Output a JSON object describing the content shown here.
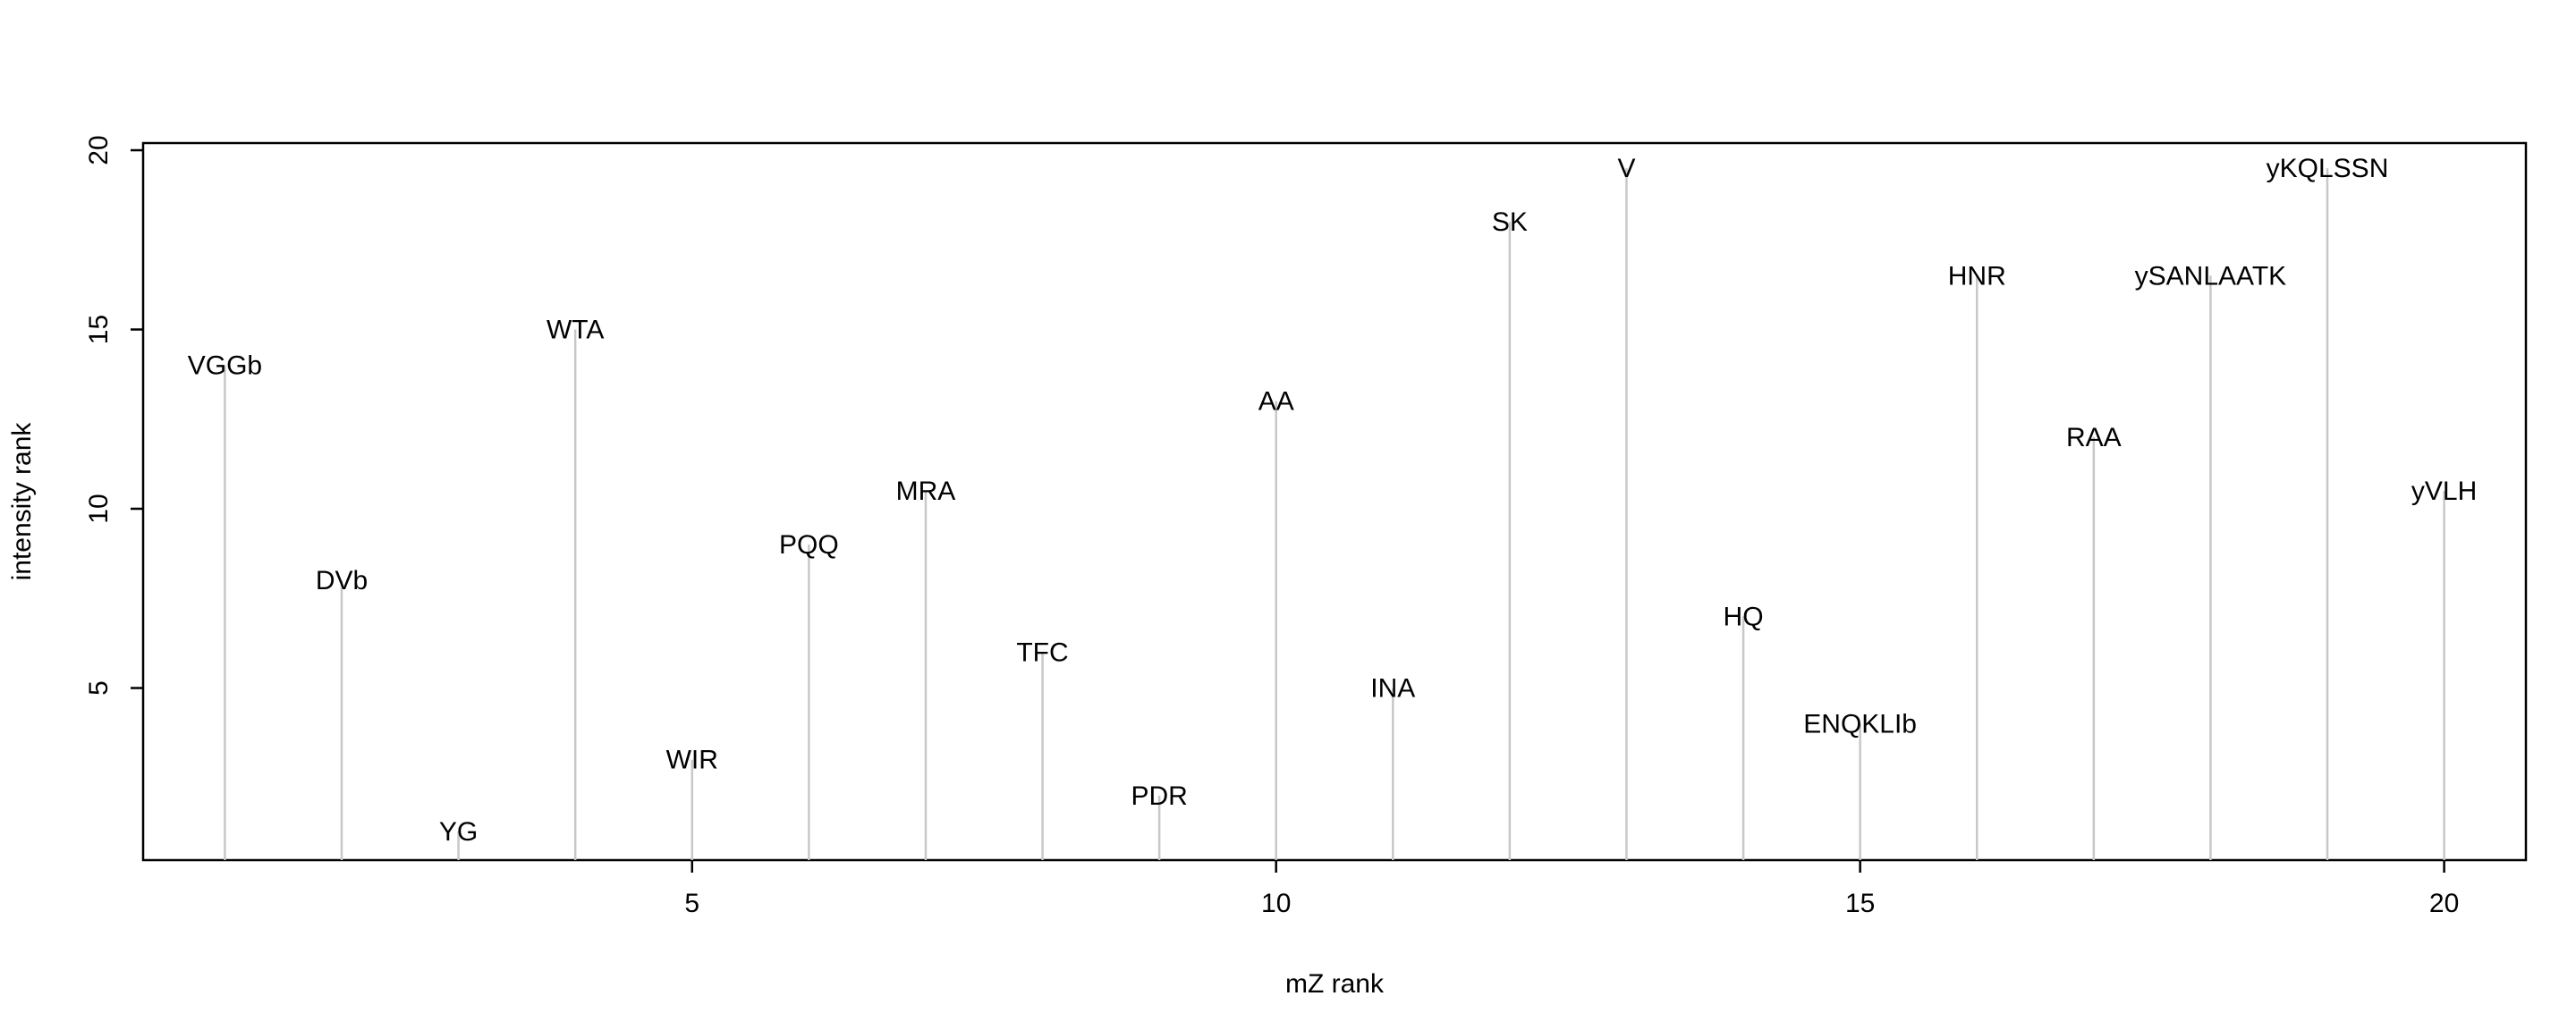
{
  "chart_data": {
    "type": "bar",
    "style": "vertical-lines-with-labels",
    "title": "",
    "xlabel": "mZ rank",
    "ylabel": "intensity rank",
    "xlim": [
      0.3,
      20.7
    ],
    "ylim": [
      0.2,
      20.2
    ],
    "xticks": [
      5,
      10,
      15,
      20
    ],
    "yticks": [
      5,
      10,
      15,
      20
    ],
    "grid": false,
    "line_color": "#c8c8c8",
    "points": [
      {
        "x": 1,
        "y": 14,
        "label": "VGGb"
      },
      {
        "x": 2,
        "y": 8,
        "label": "DVb"
      },
      {
        "x": 3,
        "y": 1,
        "label": "YG"
      },
      {
        "x": 4,
        "y": 15,
        "label": "WTA"
      },
      {
        "x": 5,
        "y": 3,
        "label": "WIR"
      },
      {
        "x": 6,
        "y": 9,
        "label": "PQQ"
      },
      {
        "x": 7,
        "y": 10.5,
        "label": "MRA"
      },
      {
        "x": 8,
        "y": 6,
        "label": "TFC"
      },
      {
        "x": 9,
        "y": 2,
        "label": "PDR"
      },
      {
        "x": 10,
        "y": 13,
        "label": "AA"
      },
      {
        "x": 11,
        "y": 5,
        "label": "INA"
      },
      {
        "x": 12,
        "y": 18,
        "label": "SK"
      },
      {
        "x": 13,
        "y": 19.5,
        "label": "V"
      },
      {
        "x": 14,
        "y": 7,
        "label": "HQ"
      },
      {
        "x": 15,
        "y": 4,
        "label": "ENQKLIb"
      },
      {
        "x": 16,
        "y": 16.5,
        "label": "HNR"
      },
      {
        "x": 17,
        "y": 12,
        "label": "RAA"
      },
      {
        "x": 18,
        "y": 16.5,
        "label": "ySANLAATK"
      },
      {
        "x": 19,
        "y": 19.5,
        "label": "yKQLSSN"
      },
      {
        "x": 20,
        "y": 10.5,
        "label": "yVLH"
      }
    ]
  }
}
